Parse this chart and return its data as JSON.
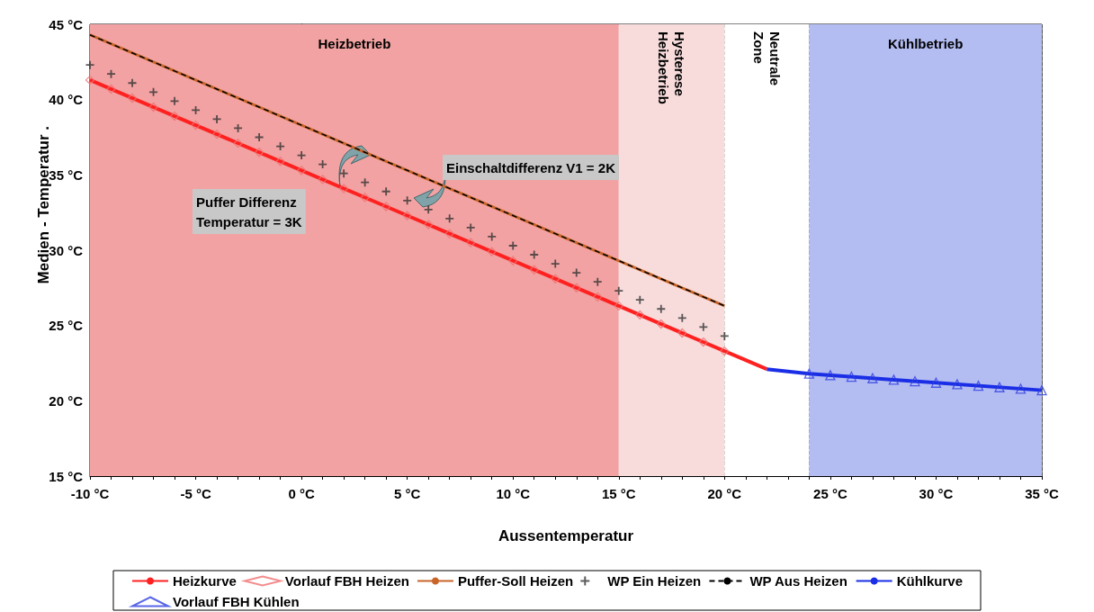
{
  "chart_data": {
    "type": "line",
    "xlabel": "Aussentemperatur",
    "ylabel": "Medien - Temperatur .",
    "xlim": [
      -10,
      35
    ],
    "ylim": [
      15,
      45
    ],
    "xticks": [
      {
        "value": -10,
        "label": "-10 °C"
      },
      {
        "value": -9,
        "label": null
      },
      {
        "value": -8,
        "label": null
      },
      {
        "value": -7,
        "label": null
      },
      {
        "value": -6,
        "label": null
      },
      {
        "value": -5,
        "label": "-5 °C"
      },
      {
        "value": -4,
        "label": null
      },
      {
        "value": -3,
        "label": null
      },
      {
        "value": -2,
        "label": null
      },
      {
        "value": -1,
        "label": null
      },
      {
        "value": 0,
        "label": "0 °C"
      },
      {
        "value": 1,
        "label": null
      },
      {
        "value": 2,
        "label": null
      },
      {
        "value": 3,
        "label": null
      },
      {
        "value": 4,
        "label": null
      },
      {
        "value": 5,
        "label": "5 °C"
      },
      {
        "value": 6,
        "label": null
      },
      {
        "value": 7,
        "label": null
      },
      {
        "value": 8,
        "label": null
      },
      {
        "value": 9,
        "label": null
      },
      {
        "value": 10,
        "label": "10 °C"
      },
      {
        "value": 11,
        "label": null
      },
      {
        "value": 12,
        "label": null
      },
      {
        "value": 13,
        "label": null
      },
      {
        "value": 14,
        "label": null
      },
      {
        "value": 15,
        "label": "15 °C"
      },
      {
        "value": 16,
        "label": null
      },
      {
        "value": 17,
        "label": null
      },
      {
        "value": 18,
        "label": null
      },
      {
        "value": 19,
        "label": null
      },
      {
        "value": 20,
        "label": "20 °C"
      },
      {
        "value": 21,
        "label": null
      },
      {
        "value": 22,
        "label": null
      },
      {
        "value": 23,
        "label": null
      },
      {
        "value": 24,
        "label": null
      },
      {
        "value": 25,
        "label": "25 °C"
      },
      {
        "value": 26,
        "label": null
      },
      {
        "value": 27,
        "label": null
      },
      {
        "value": 28,
        "label": null
      },
      {
        "value": 29,
        "label": null
      },
      {
        "value": 30,
        "label": "30 °C"
      },
      {
        "value": 31,
        "label": null
      },
      {
        "value": 32,
        "label": null
      },
      {
        "value": 33,
        "label": null
      },
      {
        "value": 34,
        "label": null
      },
      {
        "value": 35,
        "label": "35 °C"
      }
    ],
    "yticks": [
      {
        "value": 15,
        "label": "15 °C"
      },
      {
        "value": 16,
        "label": null
      },
      {
        "value": 17,
        "label": null
      },
      {
        "value": 18,
        "label": null
      },
      {
        "value": 19,
        "label": null
      },
      {
        "value": 20,
        "label": "20 °C"
      },
      {
        "value": 21,
        "label": null
      },
      {
        "value": 22,
        "label": null
      },
      {
        "value": 23,
        "label": null
      },
      {
        "value": 24,
        "label": null
      },
      {
        "value": 25,
        "label": "25 °C"
      },
      {
        "value": 26,
        "label": null
      },
      {
        "value": 27,
        "label": null
      },
      {
        "value": 28,
        "label": null
      },
      {
        "value": 29,
        "label": null
      },
      {
        "value": 30,
        "label": "30 °C"
      },
      {
        "value": 31,
        "label": null
      },
      {
        "value": 32,
        "label": null
      },
      {
        "value": 33,
        "label": null
      },
      {
        "value": 34,
        "label": null
      },
      {
        "value": 35,
        "label": "35 °C"
      },
      {
        "value": 36,
        "label": null
      },
      {
        "value": 37,
        "label": null
      },
      {
        "value": 38,
        "label": null
      },
      {
        "value": 39,
        "label": null
      },
      {
        "value": 40,
        "label": "40 °C"
      },
      {
        "value": 41,
        "label": null
      },
      {
        "value": 42,
        "label": null
      },
      {
        "value": 43,
        "label": null
      },
      {
        "value": 44,
        "label": null
      },
      {
        "value": 45,
        "label": "45 °C"
      }
    ],
    "grid": true,
    "legend": "bottom",
    "bands": [
      {
        "axis": "x",
        "from": -10,
        "to": 15,
        "label": "Heizbetrieb",
        "color": "#f2a2a2"
      },
      {
        "axis": "x",
        "from": 15,
        "to": 20,
        "label": "Hysterese\nHeizbetrieb",
        "color": "#f8dcdc"
      },
      {
        "axis": "x",
        "from": 20,
        "to": 24,
        "label": "Neutrale\nZone",
        "color": "#ffffff"
      },
      {
        "axis": "x",
        "from": 24,
        "to": 35,
        "label": "Kühlbetrieb",
        "color": "#b4bdf2"
      }
    ],
    "annotations": [
      "Einschaltdifferenz V1 = 2K",
      "Puffer Differenz\nTemperatur = 3K"
    ],
    "series": [
      {
        "name": "Heizkurve",
        "color": "#ff2020",
        "marker": "none",
        "line_style": "solid",
        "x": [
          -10,
          -5,
          0,
          5,
          10,
          15,
          20,
          22
        ],
        "values": [
          41.3,
          38.3,
          35.3,
          32.3,
          29.3,
          26.3,
          23.3,
          22.1
        ]
      },
      {
        "name": "Vorlauf FBH Heizen",
        "type": "scatter",
        "color": "#f07070",
        "marker": "diamond",
        "x": [
          -10,
          -9,
          -8,
          -7,
          -6,
          -5,
          -4,
          -3,
          -2,
          -1,
          0,
          1,
          2,
          3,
          4,
          5,
          6,
          7,
          8,
          9,
          10,
          11,
          12,
          13,
          14,
          15,
          16,
          17,
          18,
          19,
          20
        ],
        "values": [
          41.3,
          40.7,
          40.1,
          39.5,
          38.9,
          38.3,
          37.7,
          37.1,
          36.5,
          35.9,
          35.3,
          34.7,
          34.1,
          33.5,
          32.9,
          32.3,
          31.7,
          31.1,
          30.5,
          29.9,
          29.3,
          28.7,
          28.1,
          27.5,
          26.9,
          26.3,
          25.7,
          25.1,
          24.5,
          23.9,
          23.3
        ]
      },
      {
        "name": "Puffer-Soll Heizen",
        "color": "#c86428",
        "marker": "none",
        "line_style": "solid",
        "x": [
          -10,
          20
        ],
        "values": [
          44.3,
          26.3
        ]
      },
      {
        "name": "WP Ein Heizen",
        "type": "scatter",
        "color": "#333333",
        "marker": "cross",
        "x": [
          -10,
          -9,
          -8,
          -7,
          -6,
          -5,
          -4,
          -3,
          -2,
          -1,
          0,
          1,
          2,
          3,
          4,
          5,
          6,
          7,
          8,
          9,
          10,
          11,
          12,
          13,
          14,
          15,
          16,
          17,
          18,
          19,
          20
        ],
        "values": [
          42.3,
          41.7,
          41.1,
          40.5,
          39.9,
          39.3,
          38.7,
          38.1,
          37.5,
          36.9,
          36.3,
          35.7,
          35.1,
          34.5,
          33.9,
          33.3,
          32.7,
          32.1,
          31.5,
          30.9,
          30.3,
          29.7,
          29.1,
          28.5,
          27.9,
          27.3,
          26.7,
          26.1,
          25.5,
          24.9,
          24.3
        ]
      },
      {
        "name": "WP Aus Heizen",
        "color": "#000000",
        "marker": "none",
        "line_style": "dashed",
        "x": [
          -10,
          -9,
          -8,
          -7,
          -6,
          -5,
          -4,
          -3,
          -2,
          -1,
          0,
          1,
          2,
          3,
          4,
          5,
          6,
          7,
          8,
          9,
          10,
          11,
          12,
          13,
          14,
          15,
          16,
          17,
          18,
          19,
          20
        ],
        "values": [
          44.3,
          43.7,
          43.1,
          42.5,
          41.9,
          41.3,
          40.7,
          40.1,
          39.5,
          38.9,
          38.3,
          37.7,
          37.1,
          36.5,
          35.9,
          35.3,
          34.7,
          34.1,
          33.5,
          32.9,
          32.3,
          31.7,
          31.1,
          30.5,
          29.9,
          29.3,
          28.7,
          28.1,
          27.5,
          26.9,
          26.3
        ]
      },
      {
        "name": "Kühlkurve",
        "color": "#1a2ee6",
        "marker": "none",
        "line_style": "solid",
        "x": [
          22,
          24,
          35
        ],
        "values": [
          22.1,
          21.8,
          20.7
        ]
      },
      {
        "name": "Vorlauf FBH Kühlen",
        "type": "scatter",
        "color": "#3040e0",
        "marker": "triangle",
        "x": [
          24,
          25,
          26,
          27,
          28,
          29,
          30,
          31,
          32,
          33,
          34,
          35
        ],
        "values": [
          21.8,
          21.7,
          21.6,
          21.5,
          21.4,
          21.3,
          21.2,
          21.1,
          21.0,
          20.9,
          20.8,
          20.7
        ]
      }
    ]
  }
}
